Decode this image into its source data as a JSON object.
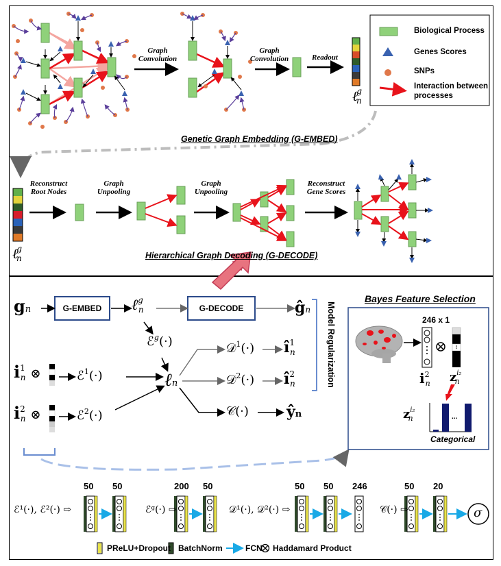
{
  "top": {
    "graph_convolution_1": "Graph\nConvolution",
    "graph_convolution_2": "Graph\nConvolution",
    "readout": "Readout",
    "latent_g": "ℓ",
    "caption_embed": "Genetic Graph Embedding (G-EMBED)",
    "reconstruct_root": "Reconstruct\nRoot Nodes",
    "graph_unpooling_1": "Graph\nUnpooling",
    "graph_unpooling_2": "Graph\nUnpooling",
    "reconstruct_gene": "Reconstruct\nGene Scores",
    "caption_decode": "Hierarchical Graph Decoding (G-DECODE)",
    "legend": {
      "bio_process": "Biological Process",
      "gene_scores": "Genes Scores",
      "snps": "SNPs",
      "interaction": "Interaction between\nprocesses"
    }
  },
  "bottom": {
    "g_embed": "G-EMBED",
    "g_decode": "G-DECODE",
    "model_regularization": "Model Regularization",
    "bayes_title": "Bayes Feature Selection",
    "bayes_dim": "246 x 1",
    "categorical": "Categorical",
    "ellipsis": "...",
    "legend": {
      "prelu": "PReLU+Dropout",
      "batchnorm": "BatchNorm",
      "fcn": "FCN",
      "hadamard": "Haddamard Product"
    },
    "nets": {
      "enc": {
        "label": "ℰ¹(·), ℰ²(·) ⇨",
        "sizes": [
          "50",
          "50"
        ]
      },
      "encg": {
        "label": "ℰᵍ(·) ⇨",
        "sizes": [
          "200",
          "50"
        ]
      },
      "dec": {
        "label": "𝒟¹(·), 𝒟²(·) ⇨",
        "sizes": [
          "50",
          "50",
          "246"
        ]
      },
      "cls": {
        "label": "𝒞(·) ⇨",
        "sizes": [
          "50",
          "20"
        ],
        "output": "σ"
      }
    }
  },
  "colors": {
    "node_green": "#8fd17a",
    "gene_blue": "#3a62b0",
    "snp_orange": "#e0784a",
    "red": "#e8131b",
    "pink": "#f4a6a0",
    "box_blue": "#2b4a8a",
    "cyan_arrow": "#19a9e6",
    "yellow": "#e9e34a",
    "dark_green": "#2f4a2a",
    "navy": "#101a6e"
  }
}
